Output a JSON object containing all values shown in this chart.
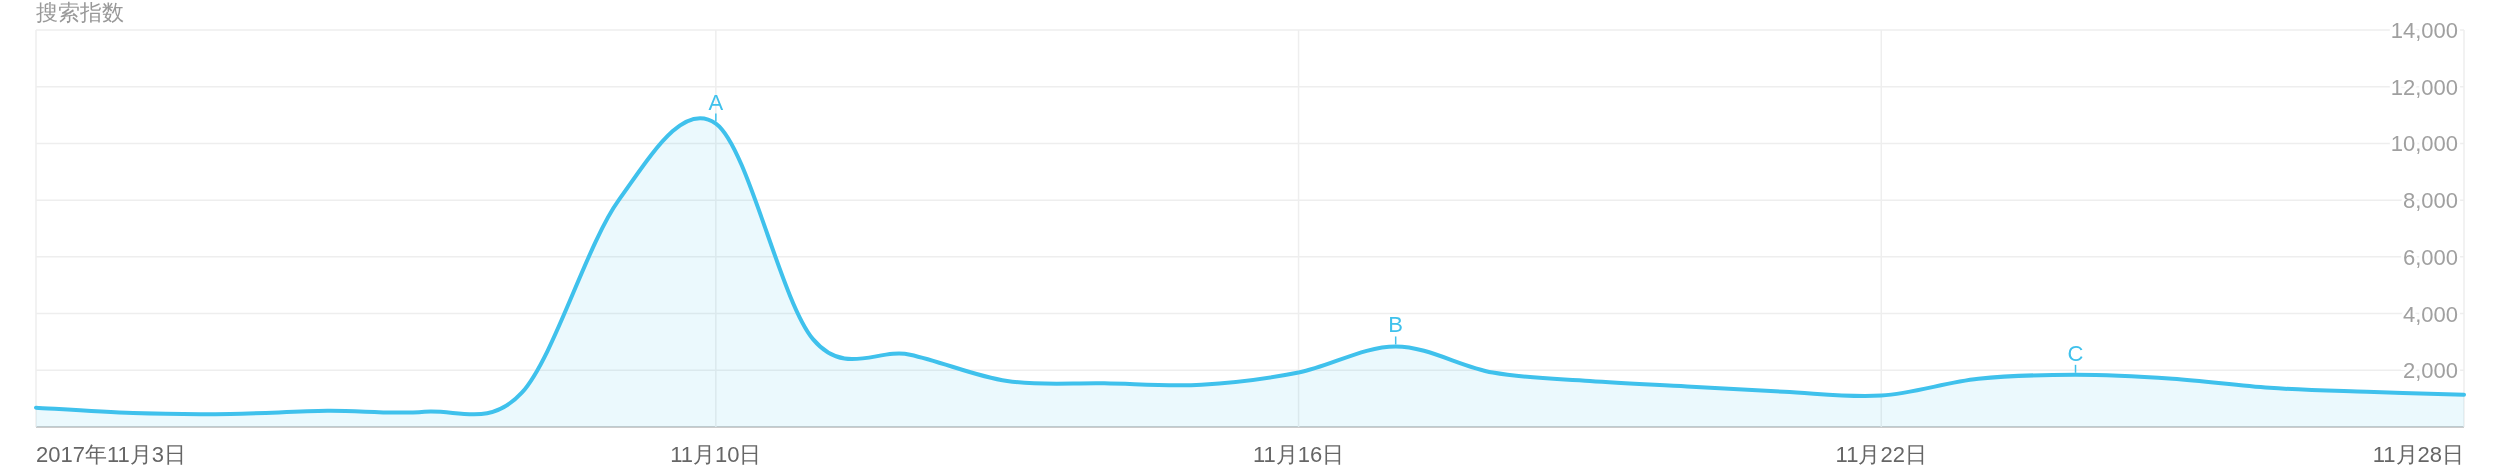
{
  "chart_data": {
    "type": "area",
    "ylabel": "搜索指数",
    "x": [
      "2017-11-03",
      "2017-11-04",
      "2017-11-05",
      "2017-11-06",
      "2017-11-07",
      "2017-11-08",
      "2017-11-09",
      "2017-11-10",
      "2017-11-11",
      "2017-11-12",
      "2017-11-13",
      "2017-11-14",
      "2017-11-15",
      "2017-11-16",
      "2017-11-17",
      "2017-11-18",
      "2017-11-19",
      "2017-11-20",
      "2017-11-21",
      "2017-11-22",
      "2017-11-23",
      "2017-11-24",
      "2017-11-25",
      "2017-11-26",
      "2017-11-27",
      "2017-11-28"
    ],
    "series": [
      {
        "color": "#3fc1ec",
        "values": [
          680,
          490,
          460,
          570,
          540,
          1200,
          8000,
          10700,
          3100,
          2550,
          1620,
          1540,
          1490,
          1920,
          2840,
          1920,
          1620,
          1430,
          1240,
          1110,
          1700,
          1840,
          1700,
          1380,
          1240,
          1140
        ]
      }
    ],
    "xlim": [
      "2017-11-03",
      "2017-11-28"
    ],
    "xticks": [
      {
        "value": "2017-11-03",
        "label": "2017年11月3日"
      },
      {
        "value": "2017-11-10",
        "label": "11月10日"
      },
      {
        "value": "2017-11-16",
        "label": "11月16日"
      },
      {
        "value": "2017-11-22",
        "label": "11月22日"
      },
      {
        "value": "2017-11-28",
        "label": "11月28日"
      }
    ],
    "ylim": [
      0,
      14000
    ],
    "yticks": [
      {
        "value": 0,
        "label": null
      },
      {
        "value": 2000,
        "label": "2,000"
      },
      {
        "value": 4000,
        "label": "4,000"
      },
      {
        "value": 6000,
        "label": "6,000"
      },
      {
        "value": 8000,
        "label": "8,000"
      },
      {
        "value": 10000,
        "label": "10,000"
      },
      {
        "value": 12000,
        "label": "12,000"
      },
      {
        "value": 14000,
        "label": "14,000"
      }
    ],
    "grid": true,
    "annotations": [
      {
        "text": "A",
        "x": "2017-11-10",
        "y": 10700
      },
      {
        "text": "B",
        "x": "2017-11-17",
        "y": 2840
      },
      {
        "text": "C",
        "x": "2017-11-24",
        "y": 1840
      }
    ]
  }
}
